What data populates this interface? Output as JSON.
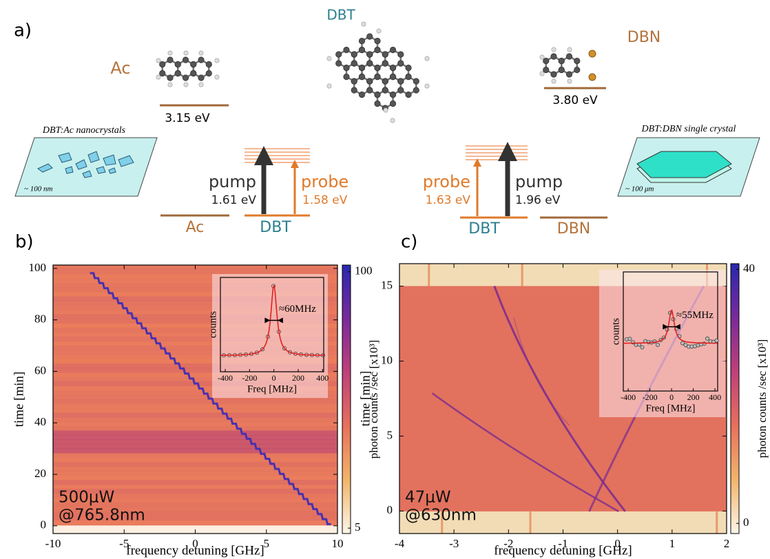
{
  "diagram": {
    "panel_label": "a)",
    "dbt": "DBT",
    "ac": "Ac",
    "dbn": "DBN",
    "ac_energy": "3.15 eV",
    "dbn_energy": "3.80 eV",
    "left_sample": {
      "title": "DBT:Ac nanocrystals",
      "scale": "~ 100 nm"
    },
    "right_sample": {
      "title": "DBT:DBN single crystal",
      "scale": "~ 100 μm"
    },
    "left_levels": {
      "pump": "pump",
      "pump_energy": "1.61 eV",
      "probe": "probe",
      "probe_energy": "1.58 eV",
      "host": "Ac",
      "guest": "DBT"
    },
    "right_levels": {
      "probe": "probe",
      "probe_energy": "1.63 eV",
      "pump": "pump",
      "pump_energy": "1.96 eV",
      "guest": "DBT",
      "host": "DBN"
    }
  },
  "chart_data": [
    {
      "type": "heatmap",
      "panel_label": "b)",
      "xlabel": "frequency detuning [GHz]",
      "ylabel": "time [min]",
      "xlim": [
        -10,
        10
      ],
      "ylim": [
        -3,
        101.3
      ],
      "xticks": [
        -10,
        -5,
        0,
        5,
        10
      ],
      "yticks": [
        0,
        20,
        40,
        60,
        80,
        100
      ],
      "annotation": [
        "500μW",
        "@765.8nm"
      ],
      "colorbar": {
        "label": "photon counts /sec [x10³]",
        "zlim": [
          3,
          102.5
        ],
        "zticks": [
          5,
          100
        ],
        "colors": [
          "#fdf6e8",
          "#f2b46a",
          "#e8705c",
          "#c0407a",
          "#7a2a9a",
          "#2828b0"
        ]
      },
      "inset": {
        "xlabel": "Freq [MHz]",
        "ylabel": "counts",
        "xlim": [
          -440,
          410
        ],
        "xticks": [
          -400,
          -200,
          0,
          200,
          400
        ],
        "annotation": "≈60MHz"
      }
    },
    {
      "type": "heatmap",
      "panel_label": "c)",
      "xlabel": "frequency detuning [GHz]",
      "ylabel": "time [min]",
      "xlim": [
        -4,
        2
      ],
      "ylim": [
        -1.5,
        16.5
      ],
      "xticks": [
        -4,
        -3,
        -2,
        -1,
        0,
        1,
        2
      ],
      "yticks": [
        0,
        5,
        10,
        15
      ],
      "annotation": [
        "47μW",
        "@630nm"
      ],
      "colorbar": {
        "label": "photon counts /sec [x10³]",
        "zlim": [
          -1.6,
          40.9
        ],
        "zticks": [
          0,
          40
        ],
        "colors": [
          "#fdf6e8",
          "#f2b46a",
          "#e8705c",
          "#c0407a",
          "#7a2a9a",
          "#2828b0"
        ]
      },
      "inset": {
        "xlabel": "Freq [MHz]",
        "ylabel": "counts",
        "xlim": [
          -445,
          425
        ],
        "xticks": [
          -400,
          -200,
          0,
          200,
          400
        ],
        "annotation": "≈55MHz"
      }
    }
  ]
}
